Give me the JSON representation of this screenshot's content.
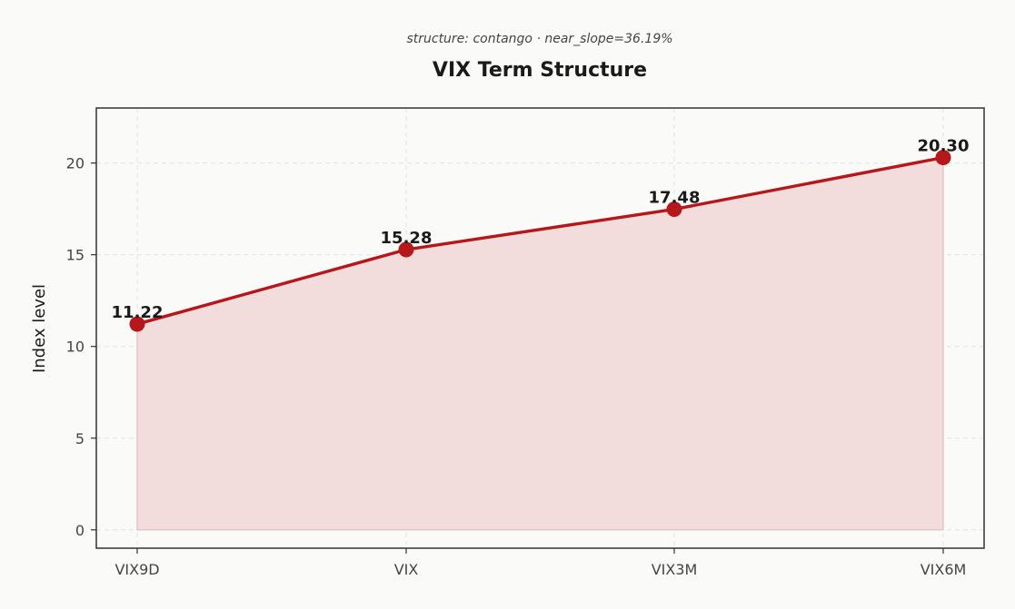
{
  "chart_data": {
    "type": "line",
    "subtitle": "structure: contango · near_slope=36.19%",
    "title": "VIX Term Structure",
    "xlabel": "",
    "ylabel": "Index level",
    "categories": [
      "VIX9D",
      "VIX",
      "VIX3M",
      "VIX6M"
    ],
    "series": [
      {
        "values": [
          11.22,
          15.28,
          17.48,
          20.3
        ],
        "data_labels": [
          "11.22",
          "15.28",
          "17.48",
          "20.30"
        ]
      }
    ],
    "ylim": [
      -1,
      23
    ],
    "yticks": [
      0,
      5,
      10,
      15,
      20
    ],
    "ytick_labels": [
      "0",
      "5",
      "10",
      "15",
      "20"
    ],
    "grid": true,
    "area_fill": true,
    "colors": {
      "line": "#b5171a",
      "marker": "#b5171a",
      "fill": "#f2dcdc",
      "fill_edge": "#e3bcbc",
      "background": "#fafaf9",
      "frame": "#333333"
    }
  }
}
